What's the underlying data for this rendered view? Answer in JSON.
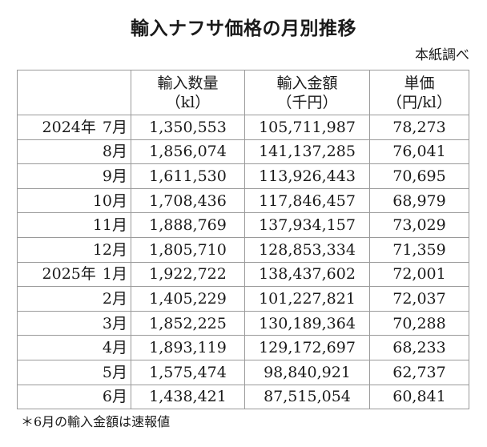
{
  "title": "輸入ナフサ価格の月別推移",
  "source": "本紙調べ",
  "table": {
    "headers": [
      {
        "label": "",
        "unit": ""
      },
      {
        "label": "輸入数量",
        "unit": "（kl）"
      },
      {
        "label": "輸入金額",
        "unit": "（千円）"
      },
      {
        "label": "単価",
        "unit": "（円/kl）"
      }
    ],
    "rows": [
      {
        "year": "2024年",
        "month": "7月",
        "volume": "1,350,553",
        "amount": "105,711,987",
        "unit_price": "78,273"
      },
      {
        "year": "",
        "month": "8月",
        "volume": "1,856,074",
        "amount": "141,137,285",
        "unit_price": "76,041"
      },
      {
        "year": "",
        "month": "9月",
        "volume": "1,611,530",
        "amount": "113,926,443",
        "unit_price": "70,695"
      },
      {
        "year": "",
        "month": "10月",
        "volume": "1,708,436",
        "amount": "117,846,457",
        "unit_price": "68,979"
      },
      {
        "year": "",
        "month": "11月",
        "volume": "1,888,769",
        "amount": "137,934,157",
        "unit_price": "73,029"
      },
      {
        "year": "",
        "month": "12月",
        "volume": "1,805,710",
        "amount": "128,853,334",
        "unit_price": "71,359"
      },
      {
        "year": "2025年",
        "month": "1月",
        "volume": "1,922,722",
        "amount": "138,437,602",
        "unit_price": "72,001"
      },
      {
        "year": "",
        "month": "2月",
        "volume": "1,405,229",
        "amount": "101,227,821",
        "unit_price": "72,037"
      },
      {
        "year": "",
        "month": "3月",
        "volume": "1,852,225",
        "amount": "130,189,364",
        "unit_price": "70,288"
      },
      {
        "year": "",
        "month": "4月",
        "volume": "1,893,119",
        "amount": "129,172,697",
        "unit_price": "68,233"
      },
      {
        "year": "",
        "month": "5月",
        "volume": "1,575,474",
        "amount": "98,840,921",
        "unit_price": "62,737"
      },
      {
        "year": "",
        "month": "6月",
        "volume": "1,438,421",
        "amount": "87,515,054",
        "unit_price": "60,841"
      }
    ]
  },
  "footnote": "＊6月の輸入金額は速報値"
}
